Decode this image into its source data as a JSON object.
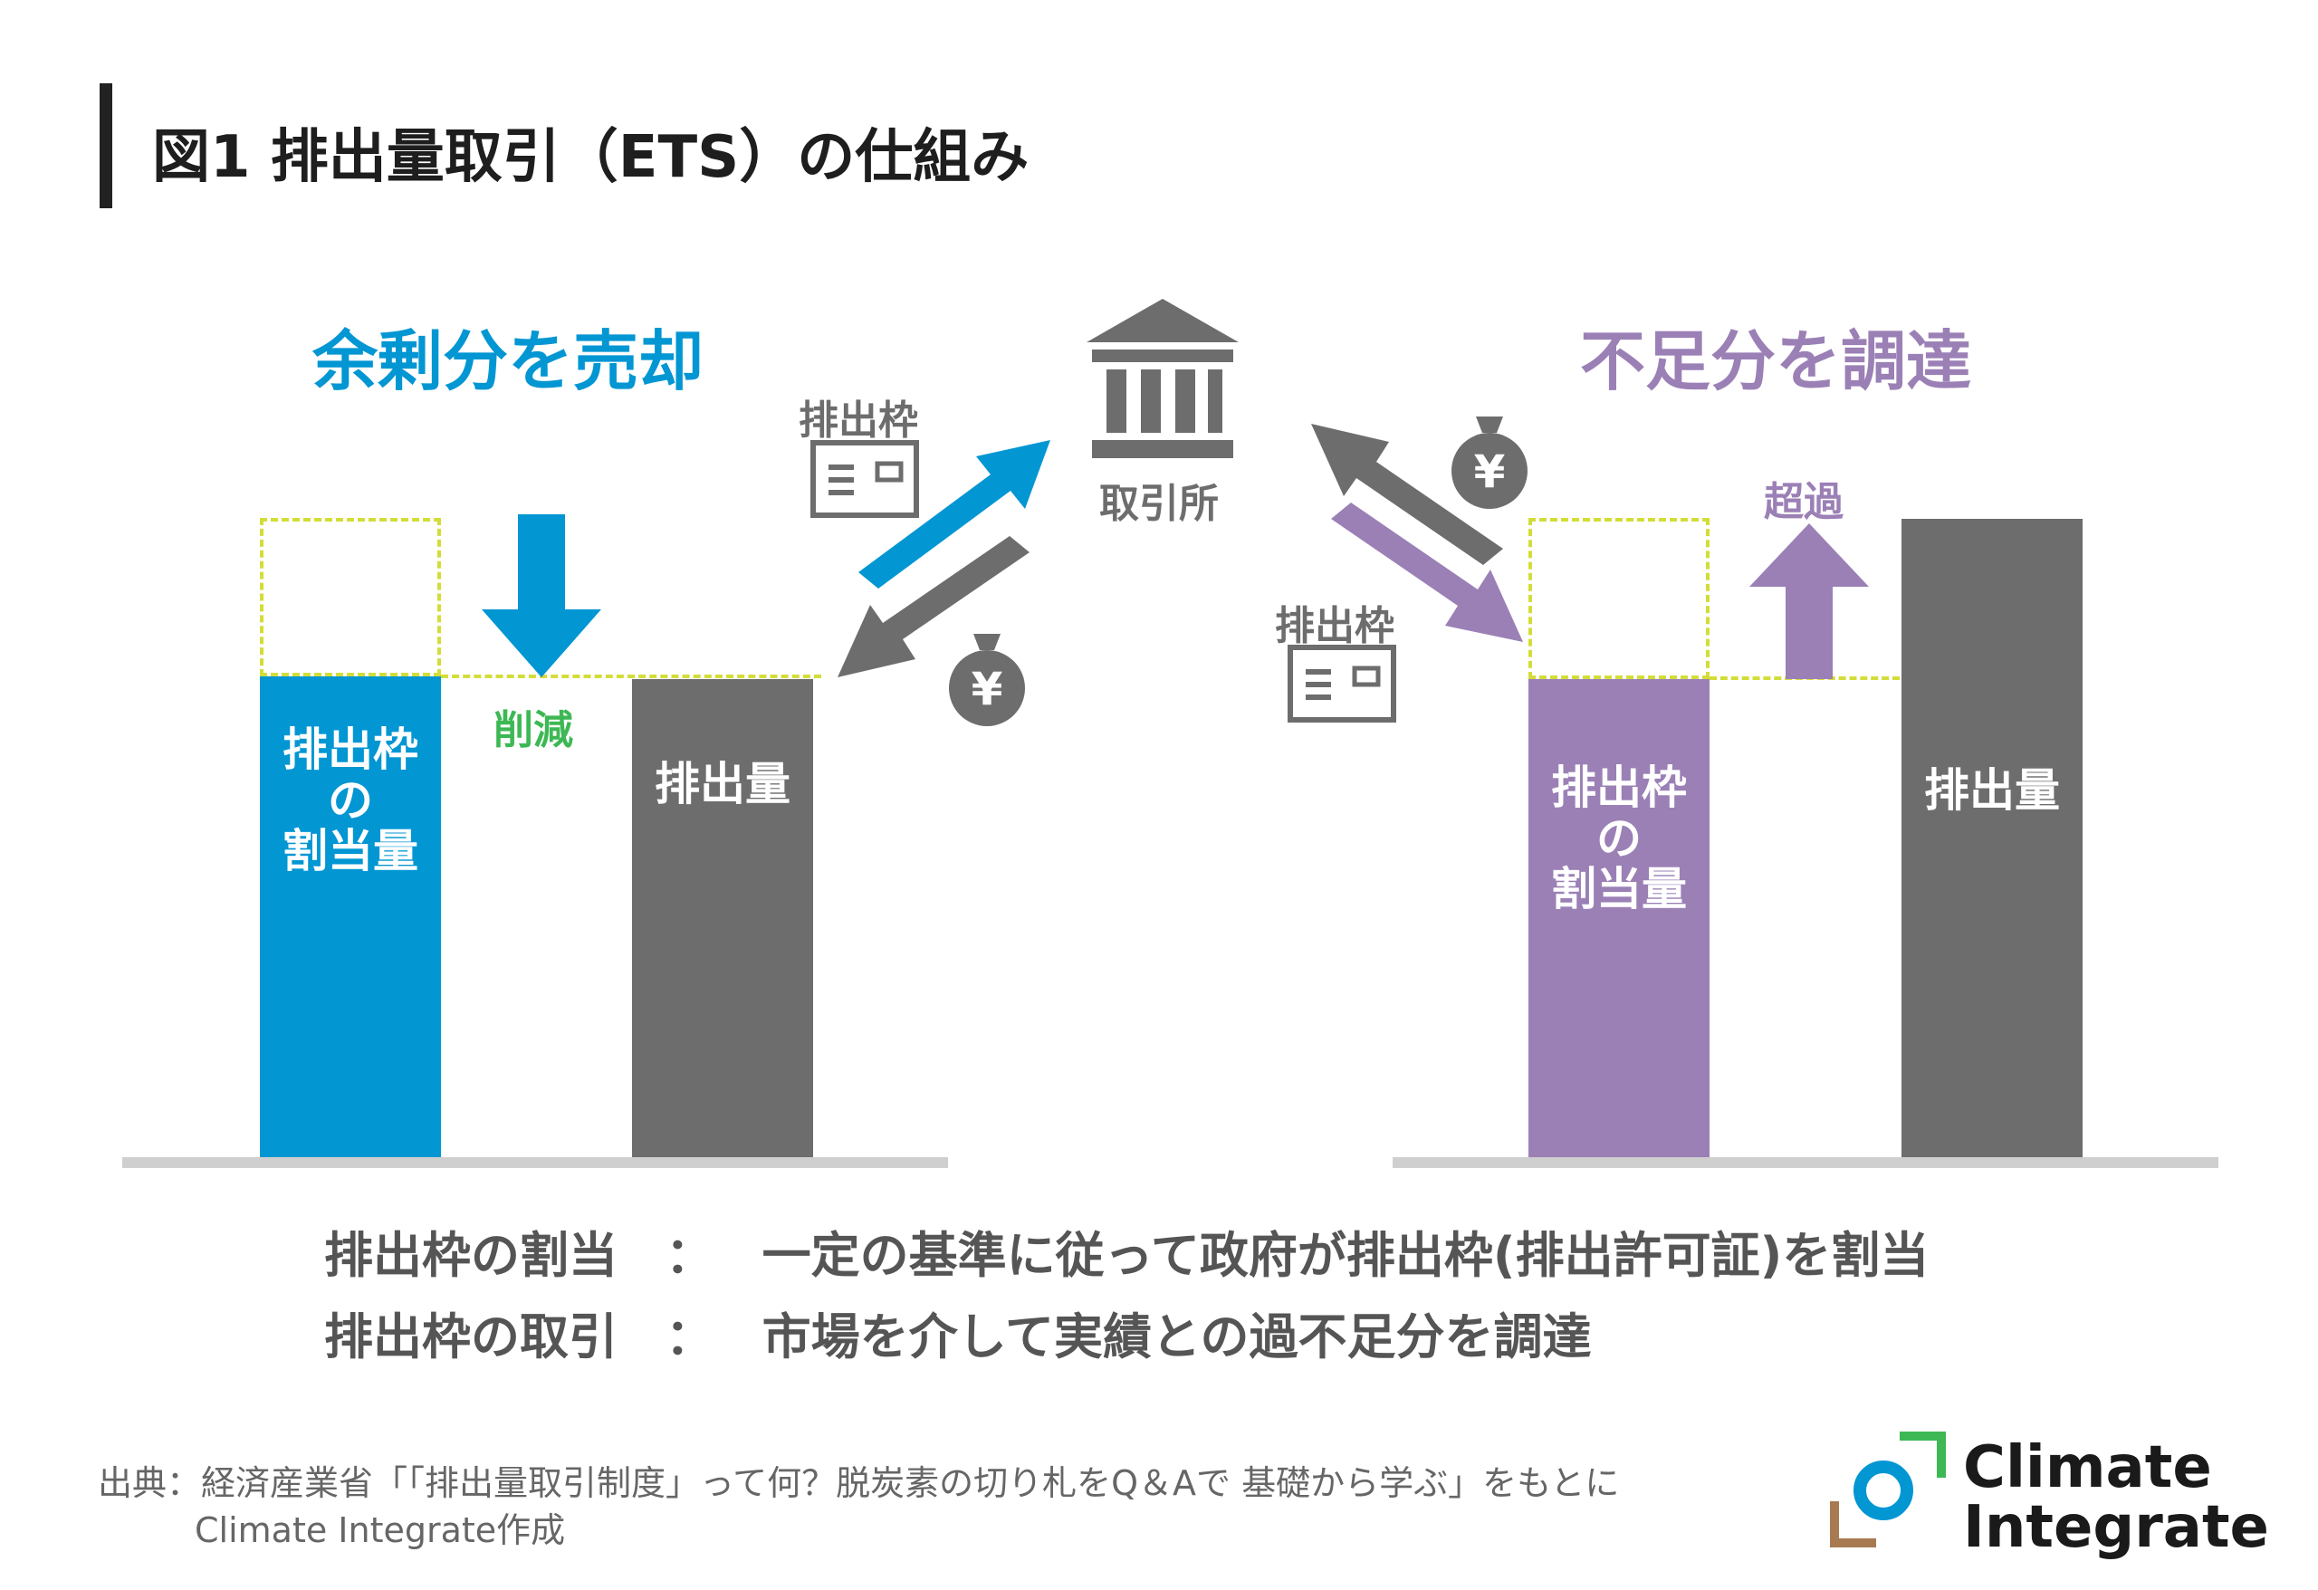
{
  "title": "図1 排出量取引（ETS）の仕組み",
  "left_panel": {
    "heading": "余剰分を売却",
    "allocation_label_lines": [
      "排出枠",
      "の",
      "割当量"
    ],
    "reduction_label": "削減",
    "emission_label": "排出量"
  },
  "right_panel": {
    "heading": "不足分を調達",
    "allocation_label_lines": [
      "排出枠",
      "の",
      "割当量"
    ],
    "excess_label": "超過",
    "emission_label": "排出量"
  },
  "exchange": {
    "label": "取引所",
    "left_permit_label": "排出枠",
    "right_permit_label": "排出枠",
    "currency_symbol": "¥"
  },
  "descriptions": [
    {
      "term": "排出枠の割当",
      "sep": "：",
      "text": "一定の基準に従って政府が排出枠(排出許可証)を割当"
    },
    {
      "term": "排出枠の取引",
      "sep": "：",
      "text": "市場を介して実績との過不足分を調達"
    }
  ],
  "source": {
    "line1": "出典：経済産業省「「排出量取引制度」って何？脱炭素の切り札をQ＆Aで 基礎から学ぶ」をもとに",
    "line2": "Climate Integrate作成"
  },
  "logo": {
    "line1": "Climate",
    "line2": "Integrate"
  },
  "colors": {
    "blue": "#0296d3",
    "purple": "#9b80b6",
    "gray": "#6d6d6d",
    "green": "#3db854",
    "dash": "#d3dd38"
  }
}
